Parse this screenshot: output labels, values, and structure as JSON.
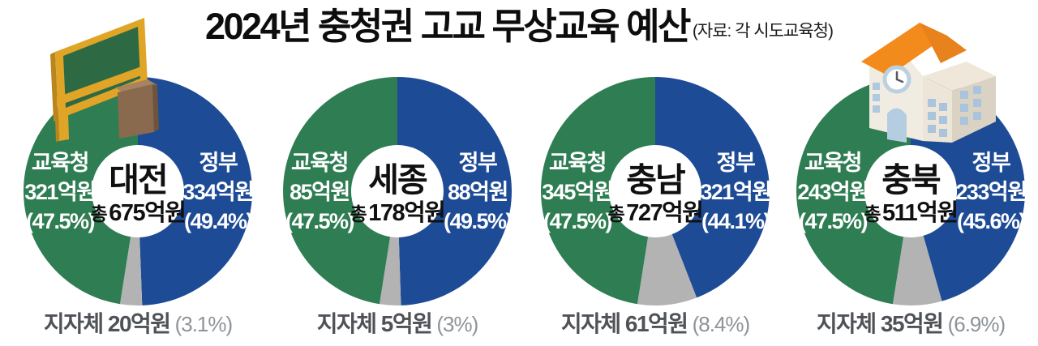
{
  "header": {
    "title": "2024년 충청권 고교 무상교육 예산",
    "source": "(자료: 각 시도교육청)"
  },
  "icons": {
    "top_left": "chalkboard-with-podium-icon",
    "top_right": "school-building-icon"
  },
  "colors": {
    "education_office": "#2F7D53",
    "government": "#1E4B96",
    "local_government": "#B3B3B3",
    "slice_label_text": "#FFFFFF",
    "center_text": "#101010",
    "bottom_amount_text": "#4F5357",
    "bottom_pct_text": "#8E9398",
    "title_text": "#0D0D0D"
  },
  "legend_labels": {
    "education_office": "교육청",
    "government": "정부",
    "local_government": "지자체",
    "total_prefix": "총"
  },
  "chart_data": {
    "type": "pie",
    "unit": "억원",
    "charts": [
      {
        "region": "대전",
        "total_value": 675,
        "total_amount_label": "675억원",
        "slices": [
          {
            "key": "government",
            "name": "정부",
            "value": 334,
            "amount_label": "334억원",
            "pct": 49.4,
            "pct_label": "(49.4%)"
          },
          {
            "key": "local_government",
            "name": "지자체",
            "value": 20,
            "amount_label": "20억원",
            "pct": 3.1,
            "pct_label": "(3.1%)"
          },
          {
            "key": "education_office",
            "name": "교육청",
            "value": 321,
            "amount_label": "321억원",
            "pct": 47.5,
            "pct_label": "(47.5%)"
          }
        ]
      },
      {
        "region": "세종",
        "total_value": 178,
        "total_amount_label": "178억원",
        "slices": [
          {
            "key": "government",
            "name": "정부",
            "value": 88,
            "amount_label": "88억원",
            "pct": 49.5,
            "pct_label": "(49.5%)"
          },
          {
            "key": "local_government",
            "name": "지자체",
            "value": 5,
            "amount_label": "5억원",
            "pct": 3,
            "pct_label": "(3%)"
          },
          {
            "key": "education_office",
            "name": "교육청",
            "value": 85,
            "amount_label": "85억원",
            "pct": 47.5,
            "pct_label": "(47.5%)"
          }
        ]
      },
      {
        "region": "충남",
        "total_value": 727,
        "total_amount_label": "727억원",
        "slices": [
          {
            "key": "government",
            "name": "정부",
            "value": 321,
            "amount_label": "321억원",
            "pct": 44.1,
            "pct_label": "(44.1%)"
          },
          {
            "key": "local_government",
            "name": "지자체",
            "value": 61,
            "amount_label": "61억원",
            "pct": 8.4,
            "pct_label": "(8.4%)"
          },
          {
            "key": "education_office",
            "name": "교육청",
            "value": 345,
            "amount_label": "345억원",
            "pct": 47.5,
            "pct_label": "(47.5%)"
          }
        ]
      },
      {
        "region": "충북",
        "total_value": 511,
        "total_amount_label": "511억원",
        "slices": [
          {
            "key": "government",
            "name": "정부",
            "value": 233,
            "amount_label": "233억원",
            "pct": 45.6,
            "pct_label": "(45.6%)"
          },
          {
            "key": "local_government",
            "name": "지자체",
            "value": 35,
            "amount_label": "35억원",
            "pct": 6.9,
            "pct_label": "(6.9%)"
          },
          {
            "key": "education_office",
            "name": "교육청",
            "value": 243,
            "amount_label": "243억원",
            "pct": 47.5,
            "pct_label": "(47.5%)"
          }
        ]
      }
    ]
  }
}
